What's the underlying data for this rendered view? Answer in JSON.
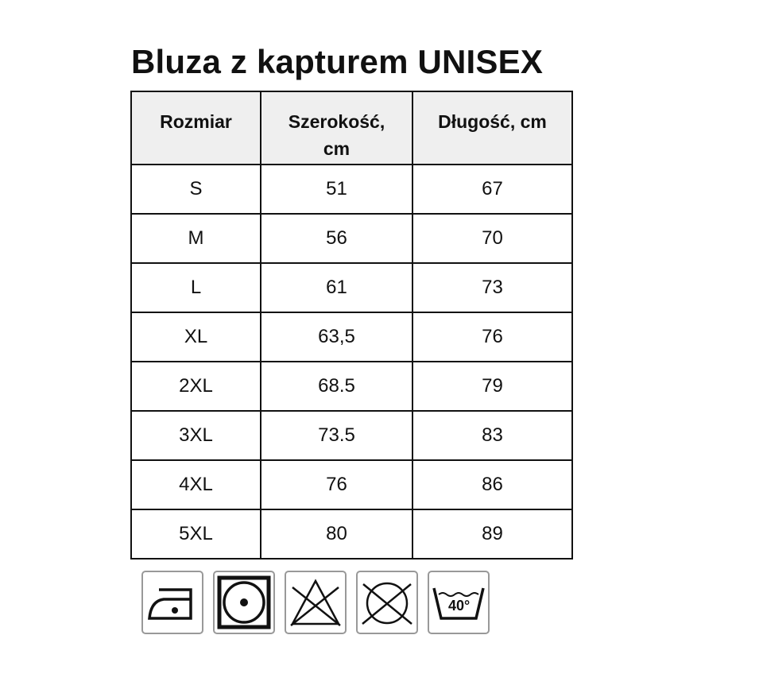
{
  "title": "Bluza z kapturem UNISEX",
  "table": {
    "headers": [
      "Rozmiar",
      "Szerokość, cm",
      "Długość, cm"
    ],
    "rows": [
      [
        "S",
        "51",
        "67"
      ],
      [
        "M",
        "56",
        "70"
      ],
      [
        "L",
        "61",
        "73"
      ],
      [
        "XL",
        "63,5",
        "76"
      ],
      [
        "2XL",
        "68.5",
        "79"
      ],
      [
        "3XL",
        "73.5",
        "83"
      ],
      [
        "4XL",
        "76",
        "86"
      ],
      [
        "5XL",
        "80",
        "89"
      ]
    ]
  },
  "care_icons": [
    "iron-low-icon",
    "tumble-dry-icon",
    "no-bleach-icon",
    "no-dry-clean-icon",
    "wash-40-icon"
  ],
  "wash_temp": "40°"
}
